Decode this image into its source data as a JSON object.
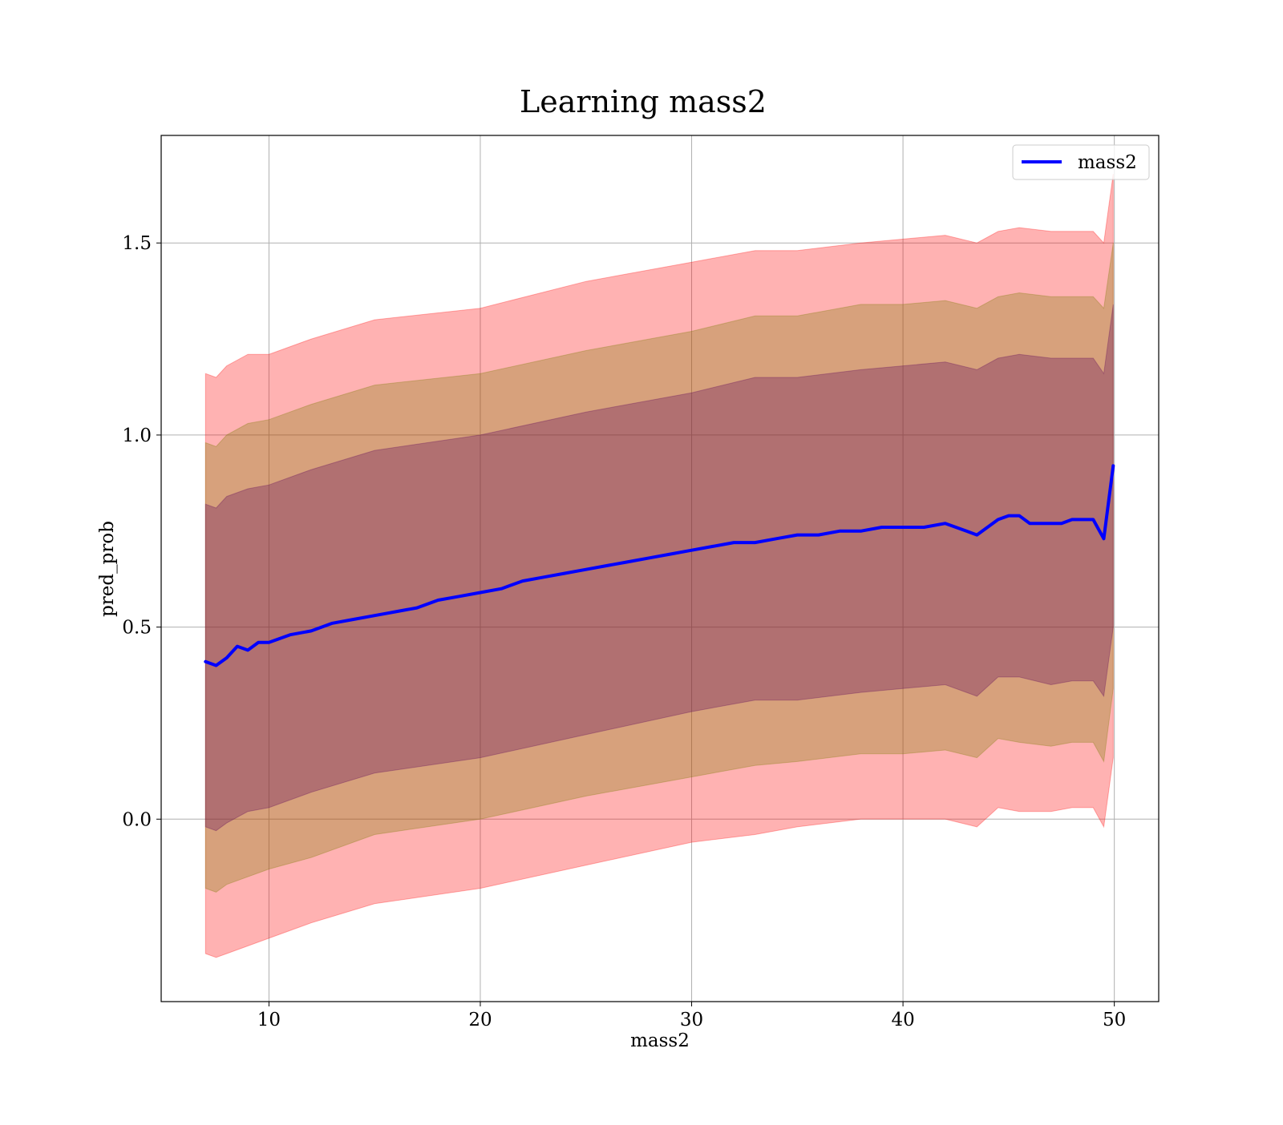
{
  "chart_data": {
    "type": "line",
    "title": "Learning mass2",
    "xlabel": "mass2",
    "ylabel": "pred_prob",
    "xlim": [
      4.9,
      52.1
    ],
    "ylim": [
      -0.475,
      1.78
    ],
    "xticks": [
      10,
      20,
      30,
      40,
      50
    ],
    "yticks": [
      0.0,
      0.5,
      1.0,
      1.5
    ],
    "xtick_labels": [
      "10",
      "20",
      "30",
      "40",
      "50"
    ],
    "ytick_labels": [
      "0.0",
      "0.5",
      "1.0",
      "1.5"
    ],
    "grid": true,
    "legend_placement": "top-right",
    "series": [
      {
        "name": "mass2",
        "color": "#0000ff",
        "x": [
          7.0,
          7.5,
          8.0,
          8.5,
          9.0,
          9.5,
          10.0,
          11.0,
          12.0,
          13.0,
          14.0,
          15.0,
          16.0,
          17.0,
          18.0,
          19.0,
          20.0,
          21.0,
          22.0,
          23.0,
          24.0,
          25.0,
          26.0,
          27.0,
          28.0,
          29.0,
          30.0,
          31.0,
          32.0,
          33.0,
          34.0,
          35.0,
          36.0,
          37.0,
          38.0,
          39.0,
          40.0,
          41.0,
          42.0,
          43.0,
          43.5,
          44.0,
          44.5,
          45.0,
          45.5,
          46.0,
          46.5,
          47.0,
          47.5,
          48.0,
          48.5,
          49.0,
          49.5,
          49.95
        ],
        "y": [
          0.41,
          0.4,
          0.42,
          0.45,
          0.44,
          0.46,
          0.46,
          0.48,
          0.49,
          0.51,
          0.52,
          0.53,
          0.54,
          0.55,
          0.57,
          0.58,
          0.59,
          0.6,
          0.62,
          0.63,
          0.64,
          0.65,
          0.66,
          0.67,
          0.68,
          0.69,
          0.7,
          0.71,
          0.72,
          0.72,
          0.73,
          0.74,
          0.74,
          0.75,
          0.75,
          0.76,
          0.76,
          0.76,
          0.77,
          0.75,
          0.74,
          0.76,
          0.78,
          0.79,
          0.79,
          0.77,
          0.77,
          0.77,
          0.77,
          0.78,
          0.78,
          0.78,
          0.73,
          0.92
        ]
      }
    ],
    "bands": [
      {
        "color": "#ff0000",
        "opacity": 0.3,
        "x": [
          7.0,
          7.5,
          8.0,
          9.0,
          10.0,
          12.0,
          15.0,
          20.0,
          25.0,
          30.0,
          33.0,
          35.0,
          38.0,
          40.0,
          42.0,
          43.5,
          44.5,
          45.5,
          47.0,
          48.0,
          49.0,
          49.5,
          49.95
        ],
        "upper": [
          1.16,
          1.15,
          1.18,
          1.21,
          1.21,
          1.25,
          1.3,
          1.33,
          1.4,
          1.45,
          1.48,
          1.48,
          1.5,
          1.51,
          1.52,
          1.5,
          1.53,
          1.54,
          1.53,
          1.53,
          1.53,
          1.5,
          1.68
        ],
        "lower": [
          -0.35,
          -0.36,
          -0.35,
          -0.33,
          -0.31,
          -0.27,
          -0.22,
          -0.18,
          -0.12,
          -0.06,
          -0.04,
          -0.02,
          -0.0,
          -0.0,
          0.0,
          -0.02,
          0.03,
          0.02,
          0.02,
          0.03,
          0.03,
          -0.02,
          0.16
        ]
      },
      {
        "color": "#7b7b00",
        "opacity": 0.3,
        "x": [
          7.0,
          7.5,
          8.0,
          9.0,
          10.0,
          12.0,
          15.0,
          20.0,
          25.0,
          30.0,
          33.0,
          35.0,
          38.0,
          40.0,
          42.0,
          43.5,
          44.5,
          45.5,
          47.0,
          48.0,
          49.0,
          49.5,
          49.95
        ],
        "upper": [
          0.98,
          0.97,
          1.0,
          1.03,
          1.04,
          1.08,
          1.13,
          1.16,
          1.22,
          1.27,
          1.31,
          1.31,
          1.34,
          1.34,
          1.35,
          1.33,
          1.36,
          1.37,
          1.36,
          1.36,
          1.36,
          1.33,
          1.5
        ],
        "lower": [
          -0.18,
          -0.19,
          -0.17,
          -0.15,
          -0.13,
          -0.1,
          -0.04,
          -0.0,
          0.06,
          0.11,
          0.14,
          0.15,
          0.17,
          0.17,
          0.18,
          0.16,
          0.21,
          0.2,
          0.19,
          0.2,
          0.2,
          0.15,
          0.34
        ]
      },
      {
        "color": "#5b005b",
        "opacity": 0.3,
        "x": [
          7.0,
          7.5,
          8.0,
          9.0,
          10.0,
          12.0,
          15.0,
          20.0,
          25.0,
          30.0,
          33.0,
          35.0,
          38.0,
          40.0,
          42.0,
          43.5,
          44.5,
          45.5,
          47.0,
          48.0,
          49.0,
          49.5,
          49.95
        ],
        "upper": [
          0.82,
          0.81,
          0.84,
          0.86,
          0.87,
          0.91,
          0.96,
          1.0,
          1.06,
          1.11,
          1.15,
          1.15,
          1.17,
          1.18,
          1.19,
          1.17,
          1.2,
          1.21,
          1.2,
          1.2,
          1.2,
          1.16,
          1.34
        ],
        "lower": [
          -0.02,
          -0.03,
          -0.01,
          0.02,
          0.03,
          0.07,
          0.12,
          0.16,
          0.22,
          0.28,
          0.31,
          0.31,
          0.33,
          0.34,
          0.35,
          0.32,
          0.37,
          0.37,
          0.35,
          0.36,
          0.36,
          0.32,
          0.5
        ]
      }
    ]
  }
}
